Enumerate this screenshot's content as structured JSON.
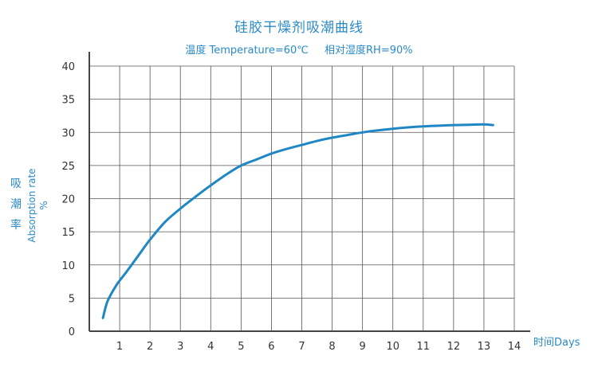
{
  "chart_data": {
    "type": "line",
    "title": "硅胶干燥剂吸潮曲线",
    "subtitle": {
      "temperature": "温度 Temperature=60℃",
      "humidity": "相对湿度RH=90%"
    },
    "ylabel": {
      "cn": [
        "吸",
        "潮",
        "率"
      ],
      "en": [
        "Absorption rate",
        "%"
      ]
    },
    "xlabel": "时间Days",
    "xlim": [
      0,
      14
    ],
    "ylim": [
      0,
      40
    ],
    "xticks": [
      1,
      2,
      3,
      4,
      5,
      6,
      7,
      8,
      9,
      10,
      11,
      12,
      13,
      14
    ],
    "yticks": [
      0,
      5,
      10,
      15,
      20,
      25,
      30,
      35,
      40
    ],
    "grid": true,
    "colors": {
      "line": "#1f87c4",
      "grid": "#555555",
      "text": "#2a8ac7"
    },
    "series": [
      {
        "x": [
          0.45,
          0.6,
          0.9,
          1.2,
          1.6,
          2.0,
          2.5,
          3.0,
          3.5,
          4.0,
          4.5,
          5.0,
          5.5,
          6.0,
          6.5,
          7.0,
          7.5,
          8.0,
          8.5,
          9.0,
          9.5,
          10.0,
          10.5,
          11.0,
          11.5,
          12.0,
          12.5,
          13.0,
          13.3
        ],
        "y": [
          2.0,
          4.5,
          7.0,
          8.8,
          11.3,
          13.8,
          16.5,
          18.5,
          20.3,
          22.0,
          23.6,
          25.0,
          25.9,
          26.8,
          27.5,
          28.1,
          28.7,
          29.2,
          29.6,
          30.0,
          30.3,
          30.55,
          30.75,
          30.9,
          31.0,
          31.1,
          31.15,
          31.2,
          31.1
        ]
      }
    ]
  }
}
